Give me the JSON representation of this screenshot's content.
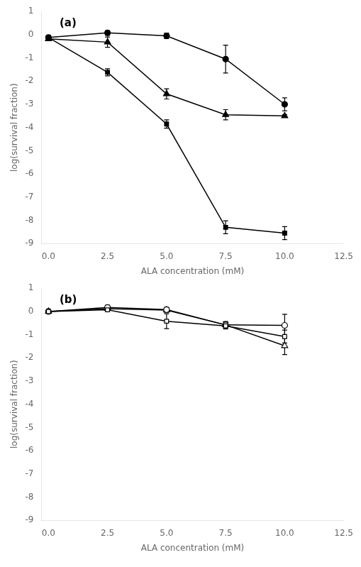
{
  "chart_data": [
    {
      "type": "line",
      "annotations": [
        "(a)"
      ],
      "x": [
        0.0,
        2.5,
        5.0,
        7.5,
        10.0
      ],
      "series": [
        {
          "values": [
            -0.12,
            0.08,
            -0.05,
            -1.05,
            -3.0
          ],
          "yerr": [
            0.08,
            0.1,
            0.12,
            0.6,
            0.28
          ],
          "marker": "circle",
          "color": "black"
        },
        {
          "values": [
            -0.18,
            -0.32,
            -2.55,
            -3.45,
            -3.5
          ],
          "yerr": [
            0.08,
            0.22,
            0.22,
            0.22,
            0.05
          ],
          "marker": "triangle",
          "color": "black"
        },
        {
          "values": [
            -0.12,
            -1.62,
            -3.85,
            -8.3,
            -8.55
          ],
          "yerr": [
            0.08,
            0.15,
            0.18,
            0.28,
            0.28
          ],
          "marker": "square",
          "color": "black"
        }
      ],
      "xlabel": "ALA concentration (mM)",
      "ylabel": "log(survival fraction)",
      "xlim": [
        -0.3,
        12.5
      ],
      "ylim": [
        -9,
        1
      ],
      "xticks": [
        {
          "value": 0.0,
          "label": "0.0"
        },
        2.5,
        {
          "value": 5.0,
          "label": "5.0"
        },
        7.5,
        {
          "value": 10.0,
          "label": "10.0"
        },
        12.5
      ],
      "yticks": [
        1,
        0,
        -1,
        -2,
        -3,
        -4,
        -5,
        -6,
        -7,
        -8,
        -9
      ],
      "grid": false
    },
    {
      "type": "line",
      "annotations": [
        "(b)"
      ],
      "x": [
        0.0,
        2.5,
        5.0,
        7.5,
        10.0
      ],
      "series": [
        {
          "values": [
            0.0,
            0.07,
            -0.42,
            -0.62,
            -1.08
          ],
          "yerr": [
            0.0,
            0.06,
            0.32,
            0.14,
            0.28
          ],
          "marker": "square-open",
          "color": "black"
        },
        {
          "values": [
            0.0,
            0.17,
            0.08,
            -0.58,
            -0.6
          ],
          "yerr": [
            0.0,
            0.1,
            0.1,
            0.14,
            0.48
          ],
          "marker": "circle-open",
          "color": "black"
        },
        {
          "values": [
            0.0,
            0.12,
            0.06,
            -0.58,
            -1.48
          ],
          "yerr": [
            0.0,
            0.08,
            0.1,
            0.14,
            0.38
          ],
          "marker": "triangle-open",
          "color": "black"
        }
      ],
      "xlabel": "ALA concentration (mM)",
      "ylabel": "log(survival fraction)",
      "xlim": [
        -0.3,
        12.5
      ],
      "ylim": [
        -9,
        1
      ],
      "xticks": [
        {
          "value": 0.0,
          "label": "0.0"
        },
        2.5,
        {
          "value": 5.0,
          "label": "5.0"
        },
        7.5,
        {
          "value": 10.0,
          "label": "10.0"
        },
        12.5
      ],
      "yticks": [
        1,
        0,
        -1,
        -2,
        -3,
        -4,
        -5,
        -6,
        -7,
        -8,
        -9
      ],
      "grid": false
    }
  ]
}
